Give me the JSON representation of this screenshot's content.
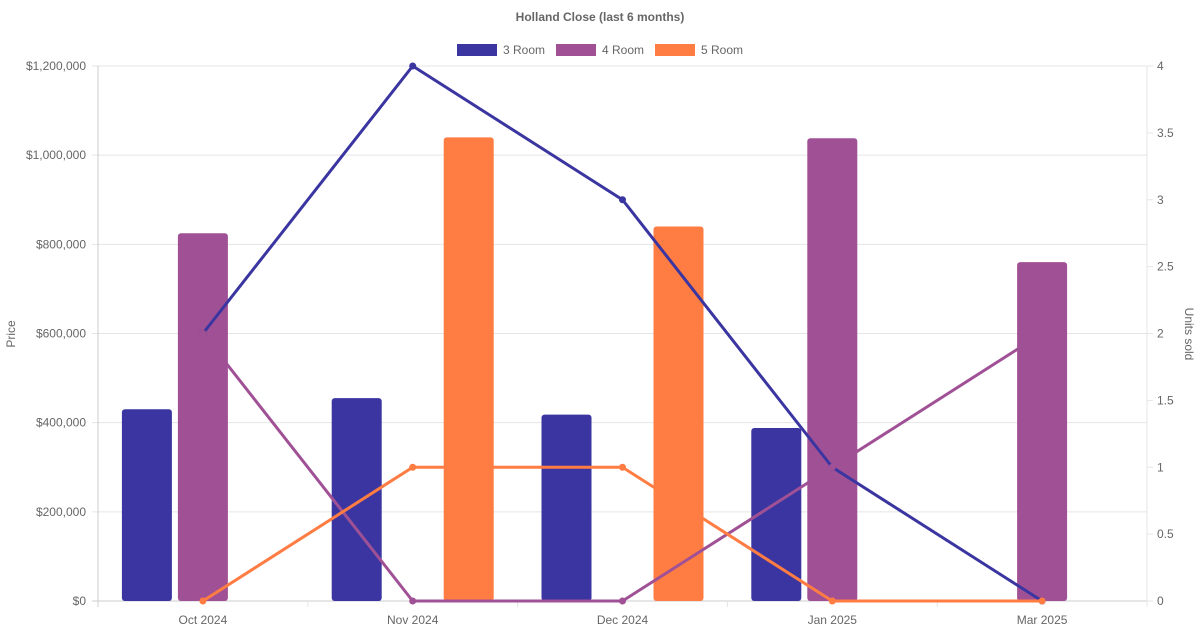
{
  "chart_data": {
    "type": "bar+line",
    "title": "Holland Close (last 6 months)",
    "categories": [
      "Oct 2024",
      "Nov 2024",
      "Dec 2024",
      "Jan 2025",
      "Mar 2025"
    ],
    "ylabel": "Price",
    "y2label": "Units sold",
    "ylim": [
      0,
      1200000
    ],
    "y2lim": [
      0,
      4
    ],
    "yticks": [
      "$0",
      "$200,000",
      "$400,000",
      "$600,000",
      "$800,000",
      "$1,000,000",
      "$1,200,000"
    ],
    "y2ticks": [
      "0",
      "0.5",
      "1",
      "1.5",
      "2",
      "2.5",
      "3",
      "3.5",
      "4"
    ],
    "legend_position": "top",
    "grid": true,
    "series": [
      {
        "name": "3 Room",
        "color": "#3a35a0",
        "price": [
          430000,
          455000,
          418000,
          388000,
          null
        ],
        "units": [
          2,
          4,
          3,
          1,
          0
        ]
      },
      {
        "name": "4 Room",
        "color": "#a05195",
        "price": [
          825000,
          null,
          null,
          1038000,
          760000
        ],
        "units": [
          2,
          0,
          0,
          1,
          2
        ]
      },
      {
        "name": "5 Room",
        "color": "#ff7c43",
        "price": [
          null,
          1040000,
          840000,
          null,
          null
        ],
        "units": [
          0,
          1,
          1,
          0,
          0
        ]
      }
    ]
  }
}
